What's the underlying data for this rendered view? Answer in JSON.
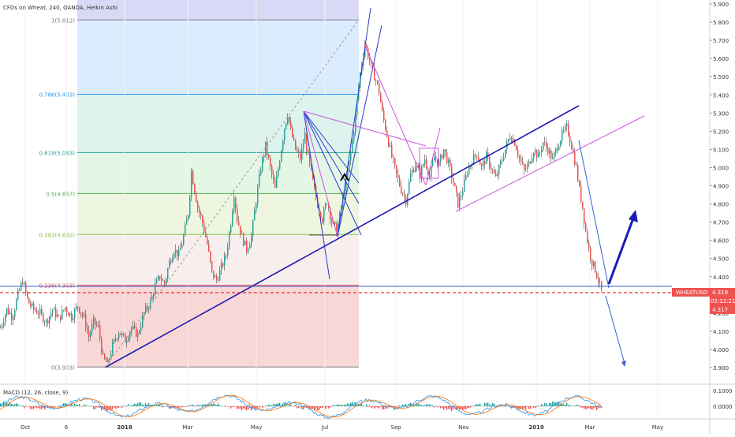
{
  "title": "CFDs on Wheat, 240, OANDA, Heikin Ashi",
  "chart_data": {
    "type": "candlestick",
    "symbol": "WHEATUSD",
    "last_price": "4.319",
    "countdown": "02:12:21",
    "low_label": "4.317",
    "price_axis": {
      "ticks": [
        "5.900",
        "5.800",
        "5.700",
        "5.600",
        "5.500",
        "5.400",
        "5.300",
        "5.200",
        "5.100",
        "5.000",
        "4.900",
        "4.800",
        "4.700",
        "4.600",
        "4.500",
        "4.400",
        "4.300",
        "4.200",
        "4.100",
        "4.000",
        "3.900"
      ],
      "ylim": [
        3.85,
        5.93
      ]
    },
    "time_axis": [
      "Oct",
      "6",
      "2018",
      "Mar",
      "May",
      "Jul",
      "Sep",
      "Nov",
      "2019",
      "Mar",
      "May"
    ],
    "fib_levels": [
      {
        "label": "1(5.812)",
        "value": 5.812,
        "color": "#787b86",
        "fill": "#e8e8e8"
      },
      {
        "label": "0.786(5.403)",
        "value": 5.403,
        "color": "#2196f3",
        "fill": "#dcecff"
      },
      {
        "label": "0.618(5.083)",
        "value": 5.083,
        "color": "#26a69a",
        "fill": "#ddf3ee"
      },
      {
        "label": "0.5(4.857)",
        "value": 4.857,
        "color": "#4caf50",
        "fill": "#e4f6e4"
      },
      {
        "label": "0.382(4.632)",
        "value": 4.632,
        "color": "#8bc34a",
        "fill": "#eef6df"
      },
      {
        "label": "0.236(4.353)",
        "value": 4.353,
        "color": "#ef5350",
        "fill": "#f8eeee"
      },
      {
        "label": "0(3.903)",
        "value": 3.903,
        "color": "#787b86",
        "fill": "#f8d7d7"
      }
    ],
    "price_path": [
      [
        0,
        4.12
      ],
      [
        8,
        4.22
      ],
      [
        15,
        4.18
      ],
      [
        22,
        4.3
      ],
      [
        28,
        4.38
      ],
      [
        35,
        4.26
      ],
      [
        42,
        4.22
      ],
      [
        50,
        4.2
      ],
      [
        58,
        4.15
      ],
      [
        66,
        4.22
      ],
      [
        74,
        4.17
      ],
      [
        82,
        4.23
      ],
      [
        90,
        4.18
      ],
      [
        98,
        4.24
      ],
      [
        106,
        4.17
      ],
      [
        112,
        4.07
      ],
      [
        118,
        4.15
      ],
      [
        124,
        4.12
      ],
      [
        130,
        3.95
      ],
      [
        136,
        3.92
      ],
      [
        142,
        4.02
      ],
      [
        150,
        4.1
      ],
      [
        158,
        4.05
      ],
      [
        166,
        4.12
      ],
      [
        174,
        4.08
      ],
      [
        182,
        4.2
      ],
      [
        190,
        4.26
      ],
      [
        196,
        4.35
      ],
      [
        202,
        4.4
      ],
      [
        208,
        4.36
      ],
      [
        214,
        4.48
      ],
      [
        220,
        4.55
      ],
      [
        226,
        4.52
      ],
      [
        232,
        4.62
      ],
      [
        238,
        4.75
      ],
      [
        242,
        4.98
      ],
      [
        246,
        4.88
      ],
      [
        250,
        4.78
      ],
      [
        256,
        4.7
      ],
      [
        262,
        4.58
      ],
      [
        268,
        4.42
      ],
      [
        274,
        4.38
      ],
      [
        280,
        4.45
      ],
      [
        286,
        4.52
      ],
      [
        292,
        4.7
      ],
      [
        296,
        4.86
      ],
      [
        300,
        4.72
      ],
      [
        306,
        4.62
      ],
      [
        312,
        4.55
      ],
      [
        318,
        4.62
      ],
      [
        324,
        4.82
      ],
      [
        330,
        5.0
      ],
      [
        336,
        5.12
      ],
      [
        342,
        5.0
      ],
      [
        348,
        4.88
      ],
      [
        354,
        5.05
      ],
      [
        360,
        5.22
      ],
      [
        364,
        5.3
      ],
      [
        368,
        5.2
      ],
      [
        374,
        5.1
      ],
      [
        380,
        5.05
      ],
      [
        386,
        5.18
      ],
      [
        390,
        5.05
      ],
      [
        396,
        4.92
      ],
      [
        402,
        4.8
      ],
      [
        408,
        4.72
      ],
      [
        414,
        4.82
      ],
      [
        420,
        4.7
      ],
      [
        426,
        4.65
      ],
      [
        432,
        4.78
      ],
      [
        438,
        4.92
      ],
      [
        444,
        5.08
      ],
      [
        450,
        5.28
      ],
      [
        456,
        5.52
      ],
      [
        462,
        5.68
      ],
      [
        466,
        5.62
      ],
      [
        470,
        5.55
      ],
      [
        476,
        5.48
      ],
      [
        480,
        5.42
      ],
      [
        484,
        5.3
      ],
      [
        490,
        5.18
      ],
      [
        496,
        5.06
      ],
      [
        502,
        4.96
      ],
      [
        508,
        4.88
      ],
      [
        514,
        4.82
      ],
      [
        520,
        4.96
      ],
      [
        526,
        5.02
      ],
      [
        532,
        4.96
      ],
      [
        538,
        5.05
      ],
      [
        544,
        4.95
      ],
      [
        550,
        5.06
      ],
      [
        556,
        5.02
      ],
      [
        562,
        5.1
      ],
      [
        568,
        5.02
      ],
      [
        574,
        4.92
      ],
      [
        580,
        4.8
      ],
      [
        586,
        4.88
      ],
      [
        592,
        4.98
      ],
      [
        598,
        5.04
      ],
      [
        604,
        5.08
      ],
      [
        610,
        5.0
      ],
      [
        616,
        5.06
      ],
      [
        622,
        5.0
      ],
      [
        628,
        4.94
      ],
      [
        634,
        5.02
      ],
      [
        640,
        5.1
      ],
      [
        646,
        5.18
      ],
      [
        652,
        5.14
      ],
      [
        658,
        5.05
      ],
      [
        664,
        4.98
      ],
      [
        670,
        5.02
      ],
      [
        676,
        5.1
      ],
      [
        682,
        5.06
      ],
      [
        688,
        5.14
      ],
      [
        694,
        5.1
      ],
      [
        700,
        5.04
      ],
      [
        706,
        5.12
      ],
      [
        712,
        5.18
      ],
      [
        718,
        5.22
      ],
      [
        722,
        5.16
      ],
      [
        726,
        5.08
      ],
      [
        730,
        5.0
      ],
      [
        734,
        4.88
      ],
      [
        738,
        4.78
      ],
      [
        742,
        4.65
      ],
      [
        746,
        4.55
      ],
      [
        750,
        4.48
      ],
      [
        754,
        4.44
      ],
      [
        758,
        4.38
      ],
      [
        762,
        4.32
      ]
    ],
    "macd": {
      "label": "MACD (12, 26, close, 9)",
      "ticks": [
        "0.1000",
        "0.0000",
        "-0.1000"
      ]
    }
  }
}
